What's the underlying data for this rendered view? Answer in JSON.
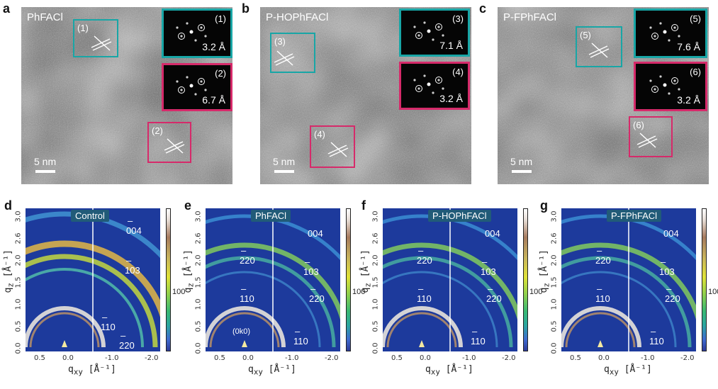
{
  "colors": {
    "cyan_box": "#18a6a6",
    "magenta_box": "#d62a6a",
    "giwaxs_bg": "#1d3a9c"
  },
  "tem_panels": [
    {
      "letter": "a",
      "name": "PhFACl",
      "scale": "5 nm",
      "rois": [
        {
          "label": "(1)",
          "color": "cyan"
        },
        {
          "label": "(2)",
          "color": "magenta"
        }
      ],
      "insets": [
        {
          "label": "(1)",
          "d": "3.2 Å",
          "color": "cyan"
        },
        {
          "label": "(2)",
          "d": "6.7 Å",
          "color": "magenta"
        }
      ]
    },
    {
      "letter": "b",
      "name": "P-HOPhFACl",
      "scale": "5 nm",
      "rois": [
        {
          "label": "(3)",
          "color": "cyan"
        },
        {
          "label": "(4)",
          "color": "magenta"
        }
      ],
      "insets": [
        {
          "label": "(3)",
          "d": "7.1 Å",
          "color": "cyan"
        },
        {
          "label": "(4)",
          "d": "3.2 Å",
          "color": "magenta"
        }
      ]
    },
    {
      "letter": "c",
      "name": "P-FPhFACl",
      "scale": "5 nm",
      "rois": [
        {
          "label": "(5)",
          "color": "cyan"
        },
        {
          "label": "(6)",
          "color": "magenta"
        }
      ],
      "insets": [
        {
          "label": "(5)",
          "d": "7.6 Å",
          "color": "cyan"
        },
        {
          "label": "(6)",
          "d": "3.2 Å",
          "color": "magenta"
        }
      ]
    }
  ],
  "giwaxs_panels": [
    {
      "letter": "d",
      "title": "Control",
      "peaks": [
        "004",
        "103",
        "110",
        "220"
      ],
      "extra": ""
    },
    {
      "letter": "e",
      "title": "PhFACl",
      "peaks": [
        "004",
        "220",
        "103",
        "110",
        "220",
        "110"
      ],
      "extra": "(0k0)"
    },
    {
      "letter": "f",
      "title": "P-HOPhFACl",
      "peaks": [
        "004",
        "220",
        "103",
        "110",
        "220",
        "110"
      ],
      "extra": ""
    },
    {
      "letter": "g",
      "title": "P-FPhFACl",
      "peaks": [
        "004",
        "220",
        "103",
        "110",
        "220",
        "110"
      ],
      "extra": ""
    }
  ],
  "axes": {
    "x_label": "q",
    "x_sub": "xy",
    "x_unit": "[Å⁻¹]",
    "y_label": "q",
    "y_sub": "z",
    "y_unit": "[Å⁻¹]",
    "x_ticks": [
      "0.5",
      "0.0",
      "-1.0",
      "-2.0"
    ],
    "y_ticks": [
      "0.0",
      "0.5",
      "1.0",
      "1.5",
      "2.0",
      "2.6",
      "3.0"
    ],
    "colorbar_tick": "100"
  }
}
